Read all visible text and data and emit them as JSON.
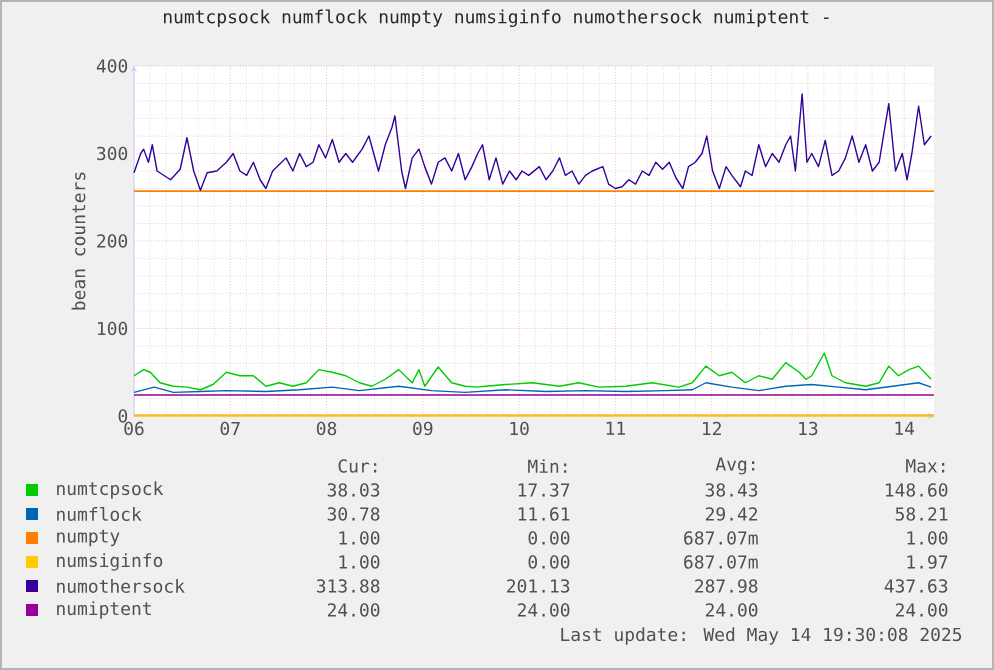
{
  "chart_data": {
    "type": "line",
    "title": "numtcpsock numflock numpty numsiginfo numothersock numiptent -",
    "ylabel": "bean counters",
    "xlim": [
      6,
      14.31
    ],
    "ylim": [
      0,
      400
    ],
    "xticks": [
      {
        "value": 6,
        "label": "06"
      },
      {
        "value": 7,
        "label": "07"
      },
      {
        "value": 8,
        "label": "08"
      },
      {
        "value": 9,
        "label": "09"
      },
      {
        "value": 10,
        "label": "10"
      },
      {
        "value": 11,
        "label": "11"
      },
      {
        "value": 12,
        "label": "12"
      },
      {
        "value": 13,
        "label": "13"
      },
      {
        "value": 14,
        "label": "14"
      }
    ],
    "yticks": [
      0,
      100,
      200,
      300,
      400
    ],
    "grid": true,
    "legend": "bottom",
    "ref_lines": [
      {
        "axis": "y",
        "value": 257,
        "color": "#ff8000"
      }
    ],
    "annotations": [
      "Cur:",
      "Min:",
      "Avg:",
      "Max:",
      "38.03",
      "17.37",
      "38.43",
      "148.60",
      "30.78",
      "11.61",
      "29.42",
      "58.21",
      "1.00",
      "0.00",
      "687.07m",
      "1.00",
      "1.00",
      "0.00",
      "687.07m",
      "1.97",
      "313.88",
      "201.13",
      "287.98",
      "437.63",
      "24.00",
      "24.00",
      "24.00",
      "24.00",
      "Last update: Wed May 14 19:30:08 2025"
    ],
    "series": [
      {
        "name": "numtcpsock",
        "color": "#00cc00",
        "x": [
          6.0,
          6.1,
          6.17,
          6.27,
          6.41,
          6.55,
          6.69,
          6.82,
          6.96,
          7.1,
          7.24,
          7.37,
          7.51,
          7.65,
          7.79,
          7.92,
          8.06,
          8.2,
          8.34,
          8.47,
          8.61,
          8.75,
          8.89,
          8.96,
          9.02,
          9.16,
          9.3,
          9.44,
          9.57,
          9.65,
          9.86,
          10.14,
          10.42,
          10.62,
          10.83,
          11.11,
          11.38,
          11.66,
          11.8,
          11.94,
          12.08,
          12.21,
          12.35,
          12.49,
          12.63,
          12.77,
          12.91,
          12.98,
          13.04,
          13.17,
          13.25,
          13.39,
          13.6,
          13.74,
          13.84,
          13.94,
          14.05,
          14.15,
          14.28
        ],
        "values": [
          46,
          53,
          50,
          38,
          34,
          33,
          30,
          36,
          50,
          46,
          46,
          34,
          38,
          34,
          38,
          53,
          50,
          46,
          38,
          34,
          42,
          53,
          38,
          53,
          34,
          56,
          38,
          34,
          33,
          34,
          36,
          38,
          34,
          38,
          33,
          34,
          38,
          33,
          38,
          57,
          46,
          50,
          38,
          46,
          42,
          61,
          50,
          42,
          46,
          72,
          46,
          38,
          34,
          38,
          57,
          46,
          53,
          57,
          42
        ]
      },
      {
        "name": "numflock",
        "color": "#0066b3",
        "x": [
          6.0,
          6.21,
          6.41,
          6.69,
          6.96,
          7.37,
          7.72,
          8.06,
          8.34,
          8.75,
          9.09,
          9.44,
          9.86,
          10.28,
          10.69,
          11.11,
          11.52,
          11.8,
          11.94,
          12.21,
          12.49,
          12.77,
          13.04,
          13.32,
          13.6,
          13.88,
          14.15,
          14.28
        ],
        "values": [
          27,
          33,
          27,
          28,
          29,
          28,
          30,
          33,
          29,
          34,
          29,
          27,
          30,
          28,
          29,
          28,
          29,
          30,
          38,
          33,
          29,
          34,
          36,
          33,
          30,
          34,
          38,
          33
        ]
      },
      {
        "name": "numpty",
        "color": "#ff8000",
        "x": [
          6.0,
          14.31
        ],
        "values": [
          1,
          1
        ]
      },
      {
        "name": "numsiginfo",
        "color": "#ffcc00",
        "x": [
          6.0,
          14.31
        ],
        "values": [
          0,
          0
        ]
      },
      {
        "name": "numothersock",
        "color": "#330099",
        "x": [
          6.0,
          6.07,
          6.1,
          6.15,
          6.19,
          6.24,
          6.31,
          6.38,
          6.48,
          6.55,
          6.62,
          6.69,
          6.76,
          6.86,
          6.96,
          7.03,
          7.1,
          7.17,
          7.24,
          7.31,
          7.37,
          7.44,
          7.58,
          7.65,
          7.72,
          7.79,
          7.86,
          7.92,
          7.99,
          8.06,
          8.13,
          8.2,
          8.27,
          8.37,
          8.44,
          8.54,
          8.61,
          8.68,
          8.71,
          8.78,
          8.82,
          8.89,
          8.96,
          9.02,
          9.09,
          9.16,
          9.23,
          9.3,
          9.37,
          9.44,
          9.51,
          9.57,
          9.62,
          9.69,
          9.76,
          9.83,
          9.9,
          9.97,
          10.03,
          10.1,
          10.21,
          10.28,
          10.35,
          10.42,
          10.48,
          10.55,
          10.62,
          10.69,
          10.76,
          10.87,
          10.93,
          11.0,
          11.07,
          11.14,
          11.21,
          11.28,
          11.35,
          11.42,
          11.49,
          11.56,
          11.63,
          11.7,
          11.76,
          11.83,
          11.9,
          11.95,
          12.01,
          12.08,
          12.15,
          12.21,
          12.3,
          12.35,
          12.42,
          12.49,
          12.56,
          12.63,
          12.7,
          12.77,
          12.82,
          12.87,
          12.94,
          12.99,
          13.04,
          13.11,
          13.18,
          13.25,
          13.32,
          13.39,
          13.46,
          13.53,
          13.6,
          13.67,
          13.74,
          13.84,
          13.91,
          13.98,
          14.03,
          14.08,
          14.15,
          14.21,
          14.28
        ],
        "values": [
          278,
          300,
          305,
          290,
          310,
          280,
          275,
          270,
          282,
          318,
          280,
          258,
          278,
          280,
          290,
          300,
          280,
          275,
          290,
          270,
          260,
          280,
          295,
          280,
          300,
          285,
          290,
          310,
          295,
          316,
          290,
          300,
          290,
          305,
          320,
          280,
          310,
          330,
          343,
          280,
          260,
          295,
          305,
          285,
          265,
          290,
          295,
          280,
          300,
          270,
          285,
          300,
          310,
          270,
          295,
          265,
          280,
          270,
          280,
          275,
          285,
          270,
          280,
          295,
          275,
          280,
          265,
          275,
          280,
          285,
          265,
          260,
          262,
          270,
          265,
          280,
          275,
          290,
          282,
          290,
          272,
          260,
          285,
          290,
          300,
          320,
          280,
          260,
          285,
          275,
          262,
          280,
          275,
          310,
          285,
          300,
          290,
          310,
          320,
          280,
          368,
          290,
          300,
          285,
          315,
          275,
          280,
          295,
          320,
          290,
          310,
          280,
          290,
          357,
          280,
          300,
          270,
          300,
          354,
          310,
          320
        ]
      },
      {
        "name": "numiptent",
        "color": "#990099",
        "x": [
          6.0,
          14.31
        ],
        "values": [
          24,
          24
        ]
      }
    ]
  }
}
